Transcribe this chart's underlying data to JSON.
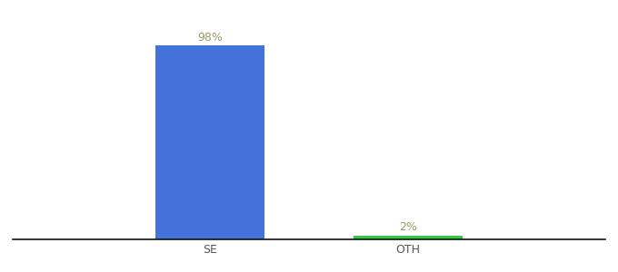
{
  "categories": [
    "SE",
    "OTH"
  ],
  "values": [
    98,
    2
  ],
  "bar_colors": [
    "#4472db",
    "#2ecc40"
  ],
  "label_texts": [
    "98%",
    "2%"
  ],
  "label_color": "#999966",
  "ylim": [
    0,
    110
  ],
  "background_color": "#ffffff",
  "bar_width": 0.55,
  "tick_fontsize": 9,
  "label_fontsize": 9,
  "x_positions": [
    1,
    2
  ]
}
